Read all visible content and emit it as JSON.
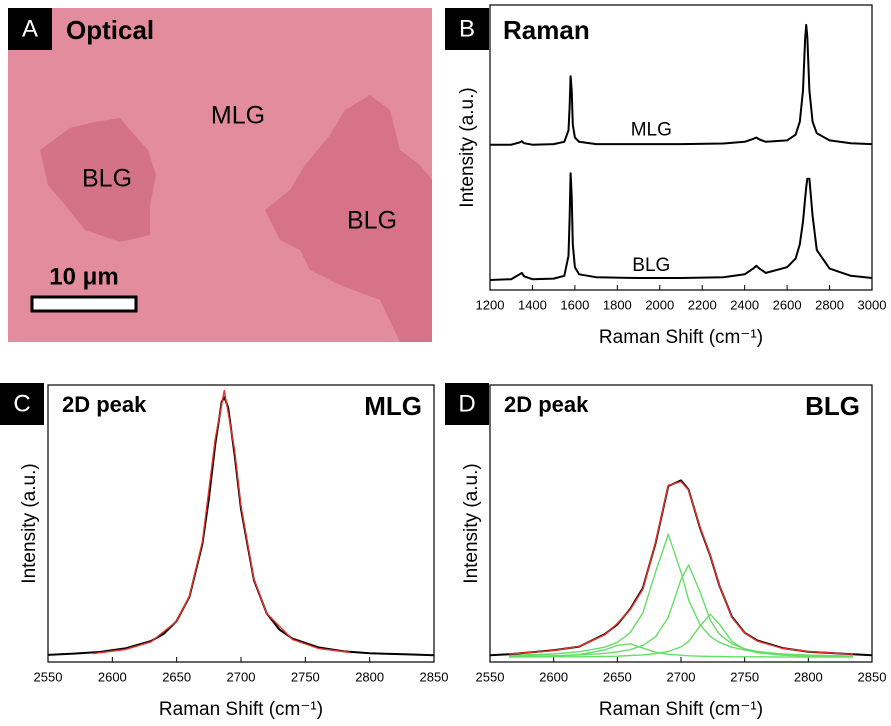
{
  "optical_panel": {
    "letter": "A",
    "title": "Optical",
    "labels": [
      "MLG",
      "BLG",
      "BLG"
    ],
    "scale_bar": "10 μm"
  },
  "chart_data": [
    {
      "type": "line",
      "letter": "B",
      "title": "Raman",
      "x_label": "Raman Shift (cm⁻¹)",
      "y_label": "Intensity (a.u.)",
      "xlim": [
        1200,
        3000
      ],
      "xticks": [
        1200,
        1400,
        1600,
        1800,
        2000,
        2200,
        2400,
        2600,
        2800,
        3000
      ],
      "ylim": [
        0,
        10
      ],
      "series": [
        {
          "name": "MLG",
          "color": "#000000",
          "x": [
            1200,
            1300,
            1340,
            1350,
            1360,
            1400,
            1500,
            1550,
            1570,
            1575,
            1580,
            1585,
            1590,
            1600,
            1620,
            1700,
            1900,
            2100,
            2300,
            2400,
            2440,
            2455,
            2470,
            2500,
            2600,
            2640,
            2660,
            2675,
            2685,
            2690,
            2695,
            2705,
            2720,
            2740,
            2800,
            2900,
            3000
          ],
          "values": [
            5.1,
            5.1,
            5.18,
            5.22,
            5.15,
            5.1,
            5.12,
            5.2,
            5.6,
            6.4,
            7.5,
            7.0,
            5.8,
            5.35,
            5.2,
            5.12,
            5.12,
            5.12,
            5.14,
            5.2,
            5.3,
            5.35,
            5.28,
            5.2,
            5.25,
            5.45,
            5.9,
            7.0,
            8.8,
            9.3,
            8.9,
            7.0,
            5.9,
            5.5,
            5.25,
            5.15,
            5.12
          ]
        },
        {
          "name": "BLG",
          "color": "#000000",
          "x": [
            1200,
            1300,
            1340,
            1350,
            1360,
            1400,
            1500,
            1550,
            1570,
            1575,
            1580,
            1585,
            1590,
            1600,
            1620,
            1700,
            1900,
            2100,
            2300,
            2400,
            2440,
            2455,
            2470,
            2500,
            2600,
            2640,
            2660,
            2675,
            2685,
            2690,
            2695,
            2705,
            2720,
            2740,
            2800,
            2900,
            3000
          ],
          "values": [
            0.35,
            0.38,
            0.55,
            0.6,
            0.48,
            0.38,
            0.4,
            0.5,
            1.2,
            2.5,
            4.1,
            3.3,
            1.6,
            0.8,
            0.55,
            0.45,
            0.42,
            0.42,
            0.45,
            0.55,
            0.75,
            0.85,
            0.75,
            0.6,
            0.8,
            1.1,
            1.6,
            2.4,
            3.2,
            3.6,
            3.9,
            3.9,
            2.6,
            1.4,
            0.75,
            0.5,
            0.42
          ]
        }
      ]
    },
    {
      "type": "line",
      "letter": "C",
      "title": "2D peak",
      "annotation": "MLG",
      "x_label": "Raman Shift (cm⁻¹)",
      "y_label": "Intensity (a.u.)",
      "xlim": [
        2550,
        2850
      ],
      "xticks": [
        2550,
        2600,
        2650,
        2700,
        2750,
        2800,
        2850
      ],
      "ylim": [
        0,
        10.2
      ],
      "series": [
        {
          "color": "#000000",
          "x": [
            2550,
            2570,
            2590,
            2610,
            2630,
            2640,
            2650,
            2660,
            2670,
            2675,
            2680,
            2685,
            2687,
            2690,
            2695,
            2700,
            2710,
            2720,
            2730,
            2740,
            2760,
            2780,
            2800,
            2830,
            2850
          ],
          "values": [
            0.26,
            0.31,
            0.37,
            0.5,
            0.77,
            1.04,
            1.51,
            2.41,
            4.35,
            6.0,
            8.03,
            9.58,
            9.75,
            9.38,
            7.63,
            5.63,
            3.02,
            1.79,
            1.19,
            0.86,
            0.54,
            0.39,
            0.32,
            0.28,
            0.25
          ]
        },
        {
          "color": "#e8302a",
          "x": [
            2585,
            2610,
            2630,
            2650,
            2660,
            2670,
            2680,
            2687,
            2695,
            2700,
            2710,
            2720,
            2740,
            2760,
            2785
          ],
          "values": [
            0.31,
            0.46,
            0.74,
            1.5,
            2.43,
            4.43,
            8.23,
            10.0,
            7.81,
            5.75,
            3.06,
            1.79,
            0.83,
            0.5,
            0.35
          ]
        }
      ]
    },
    {
      "type": "line",
      "letter": "D",
      "title": "2D peak",
      "annotation": "BLG",
      "x_label": "Raman Shift (cm⁻¹)",
      "y_label": "Intensity (a.u.)",
      "xlim": [
        2550,
        2850
      ],
      "xticks": [
        2550,
        2600,
        2650,
        2700,
        2750,
        2800,
        2850
      ],
      "ylim": [
        0,
        9
      ],
      "series": [
        {
          "color": "#66dd66",
          "x": [
            2565,
            2600,
            2620,
            2640,
            2650,
            2660,
            2670,
            2680,
            2690,
            2700,
            2706,
            2715,
            2723,
            2730,
            2740,
            2750,
            2760,
            2780,
            2800,
            2835
          ],
          "values": [
            0.17,
            0.19,
            0.24,
            0.39,
            0.54,
            0.59,
            0.45,
            0.32,
            0.25,
            0.22,
            0.2,
            0.19,
            0.18,
            0.18,
            0.17,
            0.17,
            0.17,
            0.16,
            0.16,
            0.16
          ]
        },
        {
          "color": "#66dd66",
          "x": [
            2565,
            2600,
            2620,
            2640,
            2650,
            2660,
            2670,
            2680,
            2690,
            2700,
            2706,
            2715,
            2723,
            2730,
            2740,
            2750,
            2760,
            2780,
            2800,
            2835
          ],
          "values": [
            0.21,
            0.26,
            0.33,
            0.48,
            0.64,
            0.95,
            1.59,
            2.92,
            4.15,
            2.92,
            2.02,
            1.21,
            0.83,
            0.64,
            0.48,
            0.39,
            0.33,
            0.26,
            0.22,
            0.19
          ]
        },
        {
          "color": "#66dd66",
          "x": [
            2565,
            2600,
            2620,
            2640,
            2650,
            2660,
            2670,
            2680,
            2690,
            2700,
            2706,
            2715,
            2723,
            2730,
            2740,
            2750,
            2760,
            2780,
            2800,
            2835
          ],
          "values": [
            0.18,
            0.2,
            0.23,
            0.28,
            0.33,
            0.4,
            0.54,
            0.82,
            1.45,
            2.68,
            3.15,
            2.27,
            1.36,
            0.91,
            0.59,
            0.43,
            0.34,
            0.25,
            0.22,
            0.19
          ]
        },
        {
          "color": "#66dd66",
          "x": [
            2565,
            2600,
            2620,
            2640,
            2650,
            2660,
            2670,
            2680,
            2690,
            2700,
            2706,
            2715,
            2723,
            2730,
            2740,
            2750,
            2760,
            2780,
            2800,
            2835
          ],
          "values": [
            0.16,
            0.17,
            0.17,
            0.18,
            0.19,
            0.21,
            0.23,
            0.27,
            0.34,
            0.49,
            0.67,
            1.17,
            1.55,
            1.24,
            0.67,
            0.41,
            0.3,
            0.22,
            0.19,
            0.17
          ]
        },
        {
          "color": "#000000",
          "x": [
            2550,
            2565,
            2600,
            2620,
            2640,
            2650,
            2660,
            2670,
            2680,
            2690,
            2700,
            2706,
            2715,
            2723,
            2730,
            2740,
            2750,
            2760,
            2780,
            2800,
            2835,
            2850
          ],
          "values": [
            0.22,
            0.25,
            0.38,
            0.5,
            0.9,
            1.22,
            1.72,
            2.4,
            3.85,
            5.72,
            5.9,
            5.6,
            4.35,
            3.45,
            2.5,
            1.47,
            0.95,
            0.7,
            0.45,
            0.33,
            0.25,
            0.22
          ]
        },
        {
          "color": "#e8302a",
          "x": [
            2565,
            2600,
            2620,
            2640,
            2650,
            2660,
            2670,
            2680,
            2690,
            2700,
            2706,
            2715,
            2723,
            2730,
            2740,
            2750,
            2760,
            2780,
            2800,
            2835
          ],
          "values": [
            0.26,
            0.37,
            0.51,
            0.88,
            1.25,
            1.7,
            2.36,
            3.88,
            5.74,
            5.86,
            5.59,
            4.38,
            3.47,
            2.51,
            1.45,
            0.94,
            0.68,
            0.44,
            0.34,
            0.25
          ]
        }
      ]
    }
  ]
}
